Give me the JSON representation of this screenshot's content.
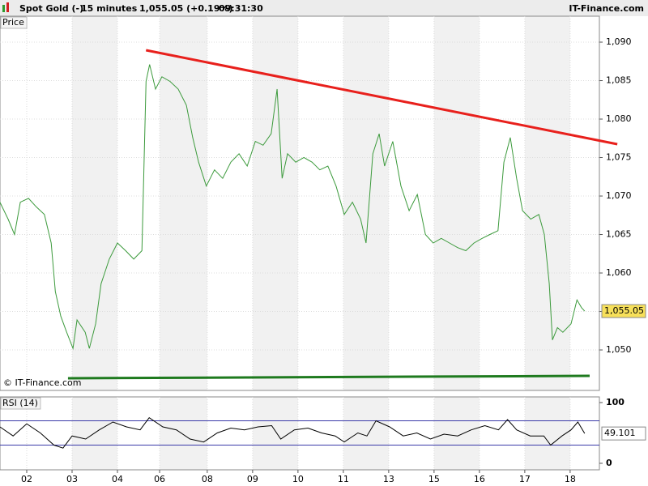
{
  "header": {
    "instrument": "Spot Gold (-)",
    "interval": "15 minutes",
    "quote": "1,055.05 (+0.19%)",
    "time": "09:31:30",
    "source": "IT-Finance.com"
  },
  "chart_data": [
    {
      "type": "line",
      "panel_label": "Price",
      "watermark": "© IT-Finance.com",
      "grid": true,
      "xlim": [
        -0.589,
        12.625
      ],
      "ylim": [
        1044.74,
        1093.37
      ],
      "yticks": [
        {
          "value": 1050,
          "label": "1,050"
        },
        {
          "value": 1055,
          "label": "1,055"
        },
        {
          "value": 1060,
          "label": "1,060"
        },
        {
          "value": 1065,
          "label": "1,065"
        },
        {
          "value": 1070,
          "label": "1,070"
        },
        {
          "value": 1075,
          "label": "1,075"
        },
        {
          "value": 1080,
          "label": "1,080"
        },
        {
          "value": 1085,
          "label": "1,085"
        },
        {
          "value": 1090,
          "label": "1,090"
        }
      ],
      "current": {
        "value": 1055.05,
        "label": "1,055.05"
      },
      "series": [
        {
          "name": "Spot Gold",
          "color": "#3c9a3c",
          "x": [
            -0.59,
            -0.41,
            -0.27,
            -0.14,
            0.04,
            0.21,
            0.39,
            0.54,
            0.63,
            0.75,
            0.88,
            1.02,
            1.11,
            1.29,
            1.38,
            1.52,
            1.64,
            1.82,
            2.0,
            2.18,
            2.36,
            2.54,
            2.63,
            2.71,
            2.84,
            2.98,
            3.16,
            3.34,
            3.52,
            3.66,
            3.79,
            3.96,
            4.14,
            4.32,
            4.5,
            4.68,
            4.86,
            5.04,
            5.21,
            5.39,
            5.52,
            5.63,
            5.75,
            5.93,
            6.11,
            6.29,
            6.46,
            6.64,
            6.82,
            7.0,
            7.18,
            7.36,
            7.48,
            7.63,
            7.77,
            7.89,
            8.07,
            8.25,
            8.43,
            8.61,
            8.79,
            8.96,
            9.14,
            9.32,
            9.5,
            9.68,
            9.86,
            10.04,
            10.21,
            10.39,
            10.52,
            10.66,
            10.8,
            10.93,
            11.11,
            11.29,
            11.41,
            11.52,
            11.59,
            11.7,
            11.82,
            12.0,
            12.13,
            12.23,
            12.3
          ],
          "values": [
            1069.2,
            1067,
            1065,
            1069.2,
            1069.7,
            1068.6,
            1067.6,
            1063.9,
            1057.6,
            1054.4,
            1052.3,
            1050.2,
            1053.9,
            1052.3,
            1050.2,
            1053.4,
            1058.6,
            1061.8,
            1063.9,
            1062.9,
            1061.8,
            1062.9,
            1084.9,
            1087.1,
            1083.9,
            1085.5,
            1084.9,
            1083.9,
            1081.8,
            1077.6,
            1074.4,
            1071.3,
            1073.4,
            1072.3,
            1074.4,
            1075.5,
            1073.9,
            1077.1,
            1076.6,
            1078.1,
            1083.9,
            1072.3,
            1075.5,
            1074.4,
            1075,
            1074.4,
            1073.4,
            1073.9,
            1071.3,
            1067.6,
            1069.2,
            1067,
            1063.9,
            1075.5,
            1078.1,
            1073.9,
            1077.1,
            1071.3,
            1068.1,
            1070.2,
            1065,
            1063.9,
            1064.5,
            1063.9,
            1063.3,
            1062.9,
            1063.9,
            1064.5,
            1065,
            1065.5,
            1074.4,
            1077.6,
            1072.3,
            1068.1,
            1067,
            1067.6,
            1065,
            1058.6,
            1051.3,
            1052.9,
            1052.3,
            1053.4,
            1056.5,
            1055.5,
            1055.05
          ]
        }
      ],
      "trendlines": [
        {
          "color": "#e8201c",
          "x": [
            2.63,
            13.02
          ],
          "y": [
            1088.95,
            1076.74
          ]
        },
        {
          "color": "#1e7a1e",
          "x": [
            0.91,
            12.41
          ],
          "y": [
            1046.32,
            1046.63
          ]
        }
      ]
    },
    {
      "type": "line",
      "panel_label": "RSI (14)",
      "xlim": [
        -0.589,
        12.625
      ],
      "ylim": [
        -10.7,
        109.3
      ],
      "xticks": [
        {
          "value": 0,
          "label": "02"
        },
        {
          "value": 1,
          "label": "03"
        },
        {
          "value": 2,
          "label": "04"
        },
        {
          "value": 2.93,
          "label": "06"
        },
        {
          "value": 3.98,
          "label": "08"
        },
        {
          "value": 4.98,
          "label": "09"
        },
        {
          "value": 5.98,
          "label": "10"
        },
        {
          "value": 6.98,
          "label": "11"
        },
        {
          "value": 7.98,
          "label": "13"
        },
        {
          "value": 8.98,
          "label": "15"
        },
        {
          "value": 9.98,
          "label": "16"
        },
        {
          "value": 10.98,
          "label": "17"
        },
        {
          "value": 11.98,
          "label": "18"
        }
      ],
      "yticks": [
        0,
        100
      ],
      "levels": [
        70,
        30
      ],
      "level_color": "#3a3aa8",
      "current": 49.101,
      "series": [
        {
          "name": "RSI (14)",
          "color": "#000000",
          "x": [
            -0.59,
            -0.3,
            0,
            0.3,
            0.6,
            0.8,
            1.0,
            1.3,
            1.6,
            1.9,
            2.2,
            2.5,
            2.7,
            3.0,
            3.3,
            3.6,
            3.9,
            4.2,
            4.5,
            4.8,
            5.1,
            5.4,
            5.6,
            5.9,
            6.2,
            6.5,
            6.8,
            7.0,
            7.3,
            7.5,
            7.7,
            8.0,
            8.3,
            8.6,
            8.9,
            9.2,
            9.5,
            9.8,
            10.1,
            10.4,
            10.6,
            10.8,
            11.1,
            11.4,
            11.55,
            11.8,
            12.0,
            12.15,
            12.3
          ],
          "values": [
            60,
            45,
            65,
            50,
            30,
            25,
            45,
            40,
            55,
            68,
            60,
            55,
            75,
            60,
            55,
            40,
            35,
            50,
            58,
            55,
            60,
            62,
            40,
            55,
            58,
            50,
            45,
            35,
            50,
            45,
            70,
            60,
            45,
            50,
            40,
            48,
            45,
            55,
            62,
            55,
            72,
            55,
            45,
            45,
            30,
            45,
            55,
            68,
            49.101
          ]
        }
      ]
    }
  ]
}
